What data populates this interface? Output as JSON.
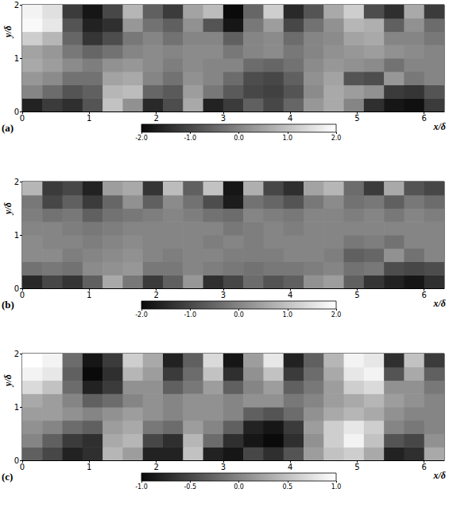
{
  "chart_data": [
    {
      "type": "heatmap",
      "title": "(a)",
      "x_label": "x/δ",
      "y_label": "y/δ",
      "xlim": [
        0,
        6.3
      ],
      "xticks": [
        0,
        1,
        2,
        3,
        4,
        5,
        6
      ],
      "ylim": [
        0,
        2
      ],
      "yticks": [
        0,
        1,
        2
      ],
      "grid": false,
      "x": [
        0.15,
        0.45,
        0.75,
        1.05,
        1.35,
        1.65,
        1.95,
        2.25,
        2.55,
        2.85,
        3.15,
        3.45,
        3.75,
        4.05,
        4.35,
        4.65,
        4.95,
        5.25,
        5.55,
        5.85,
        6.15
      ],
      "y": [
        0.125,
        0.375,
        0.625,
        0.875,
        1.125,
        1.375,
        1.625,
        1.875
      ],
      "z": [
        [
          -1.6,
          -1.2,
          -1.4,
          -0.8,
          1.0,
          0.2,
          -1.5,
          -0.9,
          0.6,
          -1.6,
          -1.2,
          -0.6,
          -1.0,
          -0.5,
          0.3,
          0.6,
          0.0,
          -1.4,
          -1.8,
          -1.9,
          -1.2
        ],
        [
          0.0,
          -0.4,
          -0.8,
          -0.6,
          0.8,
          0.9,
          -0.5,
          -0.7,
          0.4,
          -0.2,
          -0.7,
          -1.0,
          -1.1,
          -0.8,
          0.1,
          0.6,
          0.4,
          0.2,
          -1.2,
          -1.3,
          -0.8
        ],
        [
          0.3,
          0.1,
          -0.3,
          -0.3,
          0.5,
          0.6,
          0.0,
          -0.3,
          0.2,
          0.0,
          -0.4,
          -0.9,
          -1.0,
          -0.6,
          0.2,
          0.5,
          -0.8,
          -0.9,
          0.3,
          -0.2,
          0.0
        ],
        [
          0.6,
          0.4,
          0.1,
          -0.1,
          0.2,
          0.3,
          0.1,
          -0.1,
          0.1,
          0.0,
          0.0,
          -0.4,
          -0.5,
          -0.3,
          0.1,
          0.3,
          0.2,
          0.1,
          -0.3,
          0.0,
          0.0
        ],
        [
          0.5,
          0.3,
          -0.2,
          -0.5,
          -0.3,
          0.0,
          0.1,
          0.0,
          0.1,
          0.1,
          -0.2,
          0.0,
          0.1,
          -0.2,
          0.0,
          0.2,
          0.3,
          0.4,
          0.2,
          0.1,
          0.0
        ],
        [
          1.2,
          0.8,
          -0.5,
          -1.3,
          -0.9,
          -0.2,
          0.0,
          -0.3,
          0.0,
          0.0,
          -0.6,
          0.0,
          0.1,
          -0.4,
          0.0,
          0.1,
          0.5,
          0.6,
          0.0,
          0.0,
          -0.2
        ],
        [
          1.9,
          1.6,
          -0.8,
          -1.6,
          -1.4,
          0.3,
          -0.3,
          -0.6,
          0.2,
          -0.8,
          -1.8,
          -0.2,
          0.4,
          -1.0,
          -0.3,
          0.2,
          0.8,
          0.7,
          -0.6,
          0.2,
          -0.4
        ],
        [
          1.8,
          1.5,
          -1.2,
          -1.8,
          -1.0,
          0.8,
          -0.6,
          -1.2,
          0.5,
          0.9,
          -2.0,
          -0.5,
          1.2,
          -1.5,
          -0.8,
          0.6,
          1.2,
          -0.9,
          -1.4,
          0.6,
          -1.2
        ]
      ],
      "colorbar": {
        "range": [
          -2,
          2
        ],
        "ticks": [
          {
            "value": -2,
            "label": "-2.0"
          },
          {
            "value": -1,
            "label": "-1.0"
          },
          {
            "value": 0,
            "label": "0.0"
          },
          {
            "value": 1,
            "label": "1.0"
          },
          {
            "value": 2,
            "label": "2.0"
          }
        ]
      }
    },
    {
      "type": "heatmap",
      "title": "(b)",
      "x_label": "x/δ",
      "y_label": "y/δ",
      "xlim": [
        0,
        6.3
      ],
      "xticks": [
        0,
        1,
        2,
        3,
        4,
        5,
        6
      ],
      "ylim": [
        0,
        2
      ],
      "yticks": [
        0,
        1,
        2
      ],
      "grid": false,
      "x": [
        0.15,
        0.45,
        0.75,
        1.05,
        1.35,
        1.65,
        1.95,
        2.25,
        2.55,
        2.85,
        3.15,
        3.45,
        3.75,
        4.05,
        4.35,
        4.65,
        4.95,
        5.25,
        5.55,
        5.85,
        6.15
      ],
      "y": [
        0.125,
        0.375,
        0.625,
        0.875,
        1.125,
        1.375,
        1.625,
        1.875
      ],
      "z": [
        [
          -1.5,
          -1.0,
          -1.3,
          -0.6,
          0.6,
          -0.2,
          -1.2,
          -0.6,
          0.3,
          -1.4,
          -1.0,
          -0.4,
          -0.8,
          -0.6,
          0.2,
          0.4,
          -0.6,
          -1.3,
          -1.6,
          -1.8,
          -1.4
        ],
        [
          -0.3,
          -0.2,
          -0.3,
          0.1,
          0.2,
          0.3,
          -0.2,
          -0.2,
          0.0,
          -0.1,
          -0.2,
          -0.3,
          -0.2,
          -0.2,
          -0.1,
          0.0,
          -0.3,
          -0.2,
          -0.9,
          -1.0,
          -0.9
        ],
        [
          0.1,
          0.1,
          -0.1,
          0.0,
          0.1,
          0.2,
          0.0,
          -0.1,
          0.0,
          0.0,
          -0.1,
          -0.1,
          -0.1,
          0.0,
          0.0,
          -0.1,
          -0.6,
          -0.5,
          0.2,
          -0.3,
          0.0
        ],
        [
          0.1,
          0.0,
          0.0,
          -0.1,
          0.0,
          0.1,
          0.0,
          0.0,
          0.0,
          -0.1,
          0.0,
          -0.1,
          0.0,
          0.0,
          0.0,
          0.0,
          -0.2,
          -0.1,
          -0.3,
          0.0,
          0.0
        ],
        [
          0.0,
          0.0,
          -0.1,
          -0.2,
          -0.1,
          0.0,
          0.0,
          0.0,
          0.0,
          0.0,
          -0.2,
          -0.1,
          0.0,
          -0.1,
          0.0,
          0.0,
          0.0,
          0.0,
          0.0,
          0.0,
          0.0
        ],
        [
          -0.1,
          -0.3,
          -0.2,
          -0.6,
          -0.3,
          -0.2,
          -0.1,
          0.0,
          -0.1,
          -0.3,
          -0.4,
          0.0,
          -0.1,
          -0.2,
          0.0,
          0.0,
          -0.1,
          0.0,
          -0.2,
          0.0,
          -0.1
        ],
        [
          -0.2,
          -1.0,
          -0.6,
          -1.2,
          -0.5,
          0.2,
          -0.6,
          0.1,
          -0.3,
          -0.9,
          -1.7,
          -0.3,
          -0.5,
          -0.8,
          -0.2,
          0.1,
          -0.3,
          -0.2,
          -0.6,
          -0.2,
          -0.4
        ],
        [
          0.8,
          -1.2,
          -1.0,
          -1.6,
          0.4,
          0.6,
          -1.3,
          0.9,
          -0.6,
          1.0,
          -1.8,
          0.7,
          -1.0,
          -1.4,
          0.5,
          0.8,
          -0.4,
          -1.2,
          0.6,
          -0.8,
          -1.0
        ]
      ],
      "colorbar": {
        "range": [
          -2,
          2
        ],
        "ticks": [
          {
            "value": -2,
            "label": "-2.0"
          },
          {
            "value": -1,
            "label": "-1.0"
          },
          {
            "value": 0,
            "label": "0.0"
          },
          {
            "value": 1,
            "label": "1.0"
          },
          {
            "value": 2,
            "label": "2.0"
          }
        ]
      }
    },
    {
      "type": "heatmap",
      "title": "(c)",
      "x_label": "x/δ",
      "y_label": "y/δ",
      "xlim": [
        0,
        6.3
      ],
      "xticks": [
        0,
        1,
        2,
        3,
        4,
        5,
        6
      ],
      "ylim": [
        0,
        2
      ],
      "yticks": [
        0,
        1,
        2
      ],
      "grid": false,
      "x": [
        0.15,
        0.45,
        0.75,
        1.05,
        1.35,
        1.65,
        1.95,
        2.25,
        2.55,
        2.85,
        3.15,
        3.45,
        3.75,
        4.05,
        4.35,
        4.65,
        4.95,
        5.25,
        5.55,
        5.85,
        6.15
      ],
      "y": [
        0.125,
        0.375,
        0.625,
        0.875,
        1.125,
        1.375,
        1.625,
        1.875
      ],
      "z": [
        [
          -0.3,
          -0.5,
          -0.8,
          -0.7,
          0.4,
          0.2,
          -0.8,
          -0.8,
          0.5,
          -0.8,
          -0.9,
          -0.5,
          -0.7,
          -0.4,
          0.2,
          0.5,
          0.6,
          0.3,
          -0.8,
          -0.7,
          0.3
        ],
        [
          0.0,
          -0.3,
          -0.6,
          -0.7,
          0.3,
          0.4,
          -0.5,
          -0.7,
          0.4,
          -0.2,
          -0.7,
          -0.9,
          -1.0,
          -0.7,
          0.1,
          0.6,
          0.9,
          0.5,
          -0.4,
          -0.5,
          0.1
        ],
        [
          0.1,
          0.0,
          -0.2,
          -0.3,
          0.2,
          0.3,
          -0.1,
          -0.2,
          0.2,
          0.0,
          -0.3,
          -0.8,
          -0.9,
          -0.6,
          0.2,
          0.6,
          0.8,
          0.6,
          0.0,
          -0.1,
          0.0
        ],
        [
          0.2,
          0.2,
          0.1,
          0.0,
          0.1,
          0.2,
          0.1,
          0.0,
          0.1,
          0.1,
          0.0,
          -0.3,
          -0.4,
          -0.2,
          0.1,
          0.3,
          0.4,
          0.3,
          0.1,
          0.0,
          0.0
        ],
        [
          0.3,
          0.2,
          0.0,
          -0.3,
          -0.2,
          0.0,
          0.1,
          0.0,
          0.1,
          0.1,
          0.0,
          0.1,
          0.1,
          -0.1,
          0.0,
          0.2,
          0.3,
          0.4,
          0.2,
          0.1,
          0.0
        ],
        [
          0.7,
          0.5,
          -0.2,
          -0.8,
          -0.6,
          0.1,
          0.1,
          -0.3,
          -0.1,
          0.2,
          -0.3,
          0.0,
          0.2,
          -0.3,
          -0.1,
          0.2,
          0.6,
          0.7,
          0.1,
          0.1,
          -0.1
        ],
        [
          0.9,
          0.8,
          -0.3,
          -1.0,
          -0.7,
          0.4,
          0.2,
          -0.6,
          -0.2,
          0.5,
          -0.7,
          0.1,
          0.5,
          -0.6,
          -0.2,
          0.3,
          0.8,
          0.9,
          -0.4,
          0.3,
          -0.3
        ],
        [
          1.0,
          0.9,
          -0.2,
          -0.9,
          -0.6,
          0.6,
          0.3,
          -0.8,
          -0.3,
          0.7,
          -0.9,
          0.2,
          0.8,
          -0.8,
          -0.3,
          0.4,
          0.9,
          0.8,
          -0.7,
          0.5,
          -0.6
        ]
      ],
      "colorbar": {
        "range": [
          -1,
          1
        ],
        "ticks": [
          {
            "value": -1,
            "label": "-1.0"
          },
          {
            "value": -0.5,
            "label": "-0.5"
          },
          {
            "value": 0,
            "label": "0.0"
          },
          {
            "value": 0.5,
            "label": "0.5"
          },
          {
            "value": 1,
            "label": "1.0"
          }
        ]
      }
    }
  ]
}
